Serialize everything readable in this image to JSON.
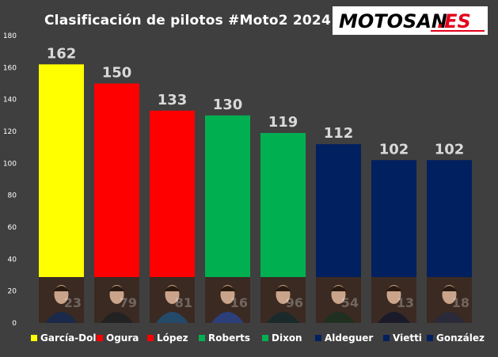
{
  "title": "Clasificación de pilotos #Moto2 2024",
  "logo": {
    "text_main": "MOTOSAN",
    "text_suffix": ".ES",
    "accent": "#e3001b"
  },
  "chart_data": {
    "type": "bar",
    "title": "Clasificación de pilotos #Moto2 2024",
    "xlabel": "",
    "ylabel": "",
    "ylim": [
      0,
      180
    ],
    "yticks": [
      0,
      20,
      40,
      60,
      80,
      100,
      120,
      140,
      160,
      180
    ],
    "grid": false,
    "legend_position": "bottom",
    "categories": [
      "García-Dols",
      "Ogura",
      "López",
      "Roberts",
      "Dixon",
      "Aldeguer",
      "Vietti",
      "González"
    ],
    "values": [
      162,
      150,
      133,
      130,
      119,
      112,
      102,
      102
    ],
    "colors": [
      "#ffff00",
      "#ff0000",
      "#ff0000",
      "#00b050",
      "#00b050",
      "#002060",
      "#002060",
      "#002060"
    ],
    "rider_numbers": [
      "23",
      "79",
      "81",
      "16",
      "96",
      "54",
      "13",
      "18"
    ]
  }
}
